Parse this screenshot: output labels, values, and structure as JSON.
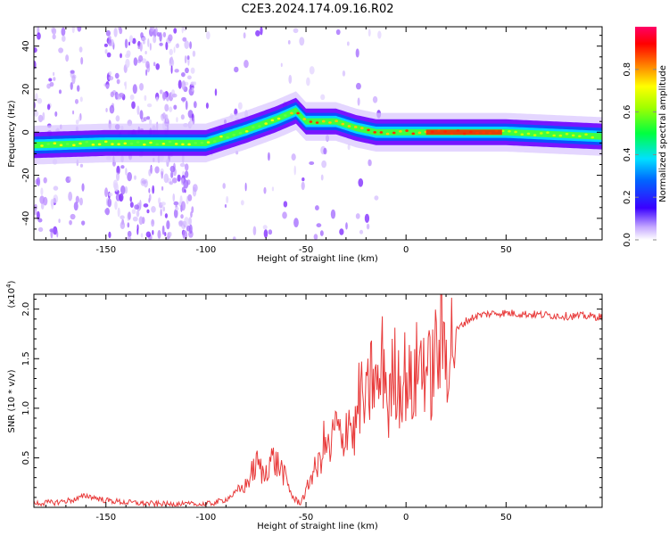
{
  "title": "C2E3.2024.174.09.16.R02",
  "chart_data": [
    {
      "type": "heatmap",
      "xlabel": "Height of straight line (km)",
      "ylabel": "Frequency (Hz)",
      "xlim": [
        -186,
        98
      ],
      "ylim": [
        -50,
        49
      ],
      "xticks": [
        -150,
        -100,
        -50,
        0,
        50
      ],
      "xtick_labels": [
        "-150",
        "-100",
        "-50",
        "0",
        "50"
      ],
      "yticks": [
        -40,
        -20,
        0,
        20,
        40
      ],
      "ytick_labels": [
        "-40",
        "-20",
        "0",
        "20",
        "40"
      ],
      "ridge_x": [
        -186,
        -150,
        -100,
        -80,
        -65,
        -55,
        -50,
        -35,
        -25,
        -15,
        0,
        20,
        50,
        98
      ],
      "ridge_y": [
        -6,
        -5,
        -5,
        1,
        6,
        10,
        5,
        5,
        2,
        0,
        0,
        0,
        0,
        -2
      ],
      "colorbar": {
        "label": "Normalized spectral amplitude",
        "range": [
          0.0,
          1.0
        ],
        "ticks": [
          0.0,
          0.2,
          0.4,
          0.6,
          0.8
        ],
        "tick_labels": [
          "0.0",
          "0.2",
          "0.4",
          "0.6",
          "0.8"
        ]
      }
    },
    {
      "type": "line",
      "xlabel": "Height of straight line (km)",
      "ylabel": "SNR (10 * v/v)",
      "exponent_label": "(x10",
      "exponent_power": "4",
      "exponent_close": ")",
      "xlim": [
        -186,
        98
      ],
      "ylim": [
        0,
        2.15
      ],
      "xticks": [
        -150,
        -100,
        -50,
        0,
        50
      ],
      "xtick_labels": [
        "-150",
        "-100",
        "-50",
        "0",
        "50"
      ],
      "yticks": [
        0.5,
        1.0,
        1.5,
        2.0
      ],
      "ytick_labels": [
        "0.5",
        "1.0",
        "1.5",
        "2.0"
      ],
      "color": "#e83a3a",
      "x": [
        -186,
        -175,
        -165,
        -160,
        -150,
        -140,
        -130,
        -120,
        -110,
        -100,
        -95,
        -90,
        -85,
        -80,
        -77,
        -74,
        -71,
        -68,
        -65,
        -62,
        -59,
        -56,
        -53,
        -50,
        -47,
        -44,
        -41,
        -38,
        -35,
        -32,
        -29,
        -26,
        -23,
        -20,
        -17,
        -14,
        -11,
        -9,
        -6,
        -3,
        0,
        3,
        6,
        9,
        12,
        15,
        18,
        21,
        25,
        30,
        35,
        40,
        45,
        50,
        60,
        70,
        80,
        90,
        98
      ],
      "y": [
        0.04,
        0.05,
        0.08,
        0.12,
        0.07,
        0.05,
        0.04,
        0.03,
        0.03,
        0.03,
        0.05,
        0.08,
        0.15,
        0.22,
        0.35,
        0.45,
        0.3,
        0.5,
        0.45,
        0.38,
        0.22,
        0.08,
        0.05,
        0.15,
        0.35,
        0.4,
        0.65,
        0.55,
        0.85,
        0.6,
        0.95,
        0.7,
        1.15,
        1.0,
        1.35,
        1.15,
        1.55,
        0.95,
        1.4,
        1.25,
        1.35,
        1.15,
        1.45,
        1.5,
        1.3,
        1.55,
        1.65,
        1.6,
        1.78,
        1.88,
        1.93,
        1.95,
        1.96,
        1.96,
        1.95,
        1.94,
        1.93,
        1.93,
        1.92
      ]
    }
  ]
}
